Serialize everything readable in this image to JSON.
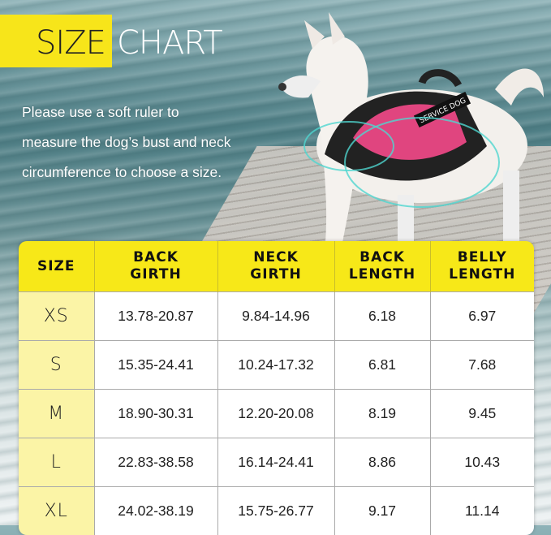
{
  "title": {
    "part1": "SIZE",
    "part2": "CHART"
  },
  "intro_lines": [
    "Please use a soft ruler to",
    "measure the dog’s bust and neck",
    "circumference to choose a size."
  ],
  "harness_label": "SERVICE DOG",
  "colors": {
    "accent_yellow": "#f7e818",
    "size_cell": "#fbf4a6",
    "harness_pink": "#e0457f"
  },
  "table": {
    "headers": [
      [
        "SIZE"
      ],
      [
        "BACK",
        "GIRTH"
      ],
      [
        "NECK",
        "GIRTH"
      ],
      [
        "BACK",
        "LENGTH"
      ],
      [
        "BELLY",
        "LENGTH"
      ]
    ],
    "rows": [
      [
        "XS",
        "13.78-20.87",
        "9.84-14.96",
        "6.18",
        "6.97"
      ],
      [
        "S",
        "15.35-24.41",
        "10.24-17.32",
        "6.81",
        "7.68"
      ],
      [
        "M",
        "18.90-30.31",
        "12.20-20.08",
        "8.19",
        "9.45"
      ],
      [
        "L",
        "22.83-38.58",
        "16.14-24.41",
        "8.86",
        "10.43"
      ],
      [
        "XL",
        "24.02-38.19",
        "15.75-26.77",
        "9.17",
        "11.14"
      ]
    ]
  }
}
